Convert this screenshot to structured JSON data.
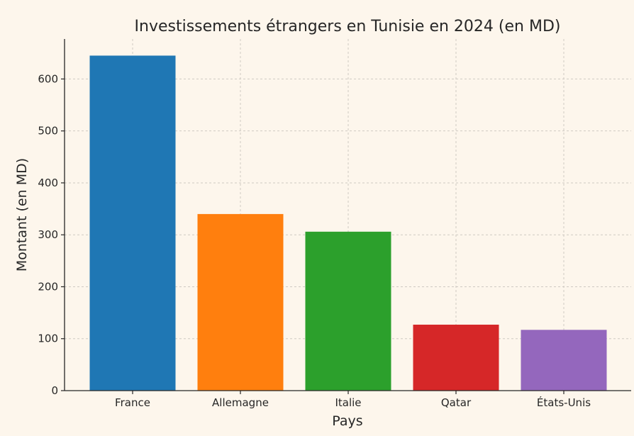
{
  "chart_data": {
    "type": "bar",
    "title": "Investissements étrangers en Tunisie en 2024 (en MD)",
    "xlabel": "Pays",
    "ylabel": "Montant (en MD)",
    "categories": [
      "France",
      "Allemagne",
      "Italie",
      "Qatar",
      "États-Unis"
    ],
    "values": [
      645,
      340,
      306,
      127,
      117
    ],
    "colors": [
      "#1f77b4",
      "#ff7f0e",
      "#2ca02c",
      "#d62728",
      "#9467bd"
    ],
    "ylim": [
      0,
      677
    ],
    "yticks": [
      0,
      100,
      200,
      300,
      400,
      500,
      600
    ],
    "grid": true
  }
}
